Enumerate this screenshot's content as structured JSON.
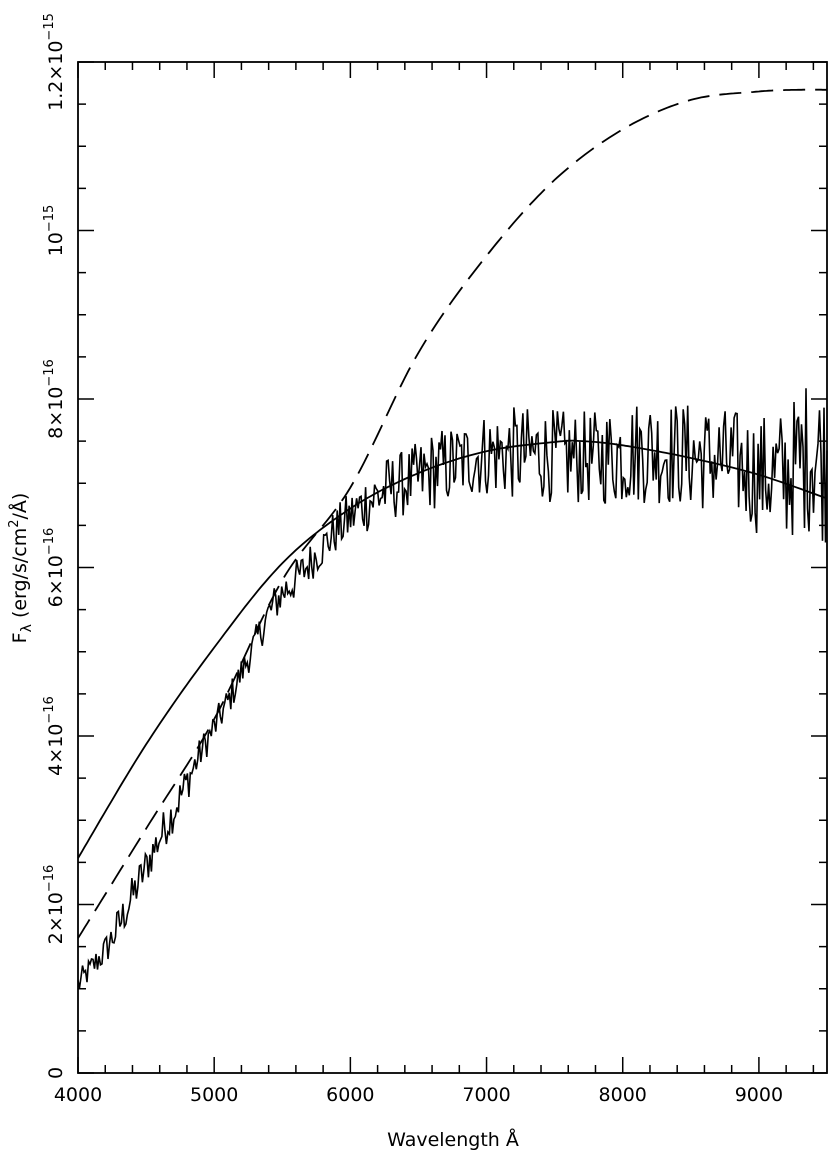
{
  "chart_data": {
    "type": "line",
    "title": "",
    "xlabel": "Wavelength Å",
    "ylabel": {
      "prefix": "F",
      "subscript": "λ",
      "units_start": " (erg/s/cm",
      "superscript": "2",
      "units_end": "/Å)"
    },
    "xlim": [
      4000,
      9500
    ],
    "ylim": [
      0,
      1.2e-15
    ],
    "grid": false,
    "legend": "none",
    "x_tick_labels": [
      {
        "value": 4000,
        "label": "4000"
      },
      {
        "value": 5000,
        "label": "5000"
      },
      {
        "value": 6000,
        "label": "6000"
      },
      {
        "value": 7000,
        "label": "7000"
      },
      {
        "value": 8000,
        "label": "8000"
      },
      {
        "value": 9000,
        "label": "9000"
      }
    ],
    "y_tick_labels": [
      {
        "value": 0,
        "mantissa": "0",
        "exponent": ""
      },
      {
        "value": 2e-16,
        "mantissa": "2×10",
        "exponent": "−16"
      },
      {
        "value": 4e-16,
        "mantissa": "4×10",
        "exponent": "−16"
      },
      {
        "value": 6e-16,
        "mantissa": "6×10",
        "exponent": "−16"
      },
      {
        "value": 8e-16,
        "mantissa": "8×10",
        "exponent": "−16"
      },
      {
        "value": 1e-15,
        "mantissa": "10",
        "exponent": "−15"
      },
      {
        "value": 1.2e-15,
        "mantissa": "1.2×10",
        "exponent": "−15"
      }
    ],
    "series": [
      {
        "style": "solid",
        "x": [
          4000,
          4500,
          5000,
          5500,
          6000,
          6500,
          7000,
          7500,
          7700,
          8000,
          8500,
          9000,
          9500
        ],
        "y": [
          2.55e-16,
          3.9e-16,
          5.05e-16,
          6.05e-16,
          6.7e-16,
          7.12e-16,
          7.38e-16,
          7.49e-16,
          7.5e-16,
          7.45e-16,
          7.3e-16,
          7.1e-16,
          6.82e-16
        ]
      },
      {
        "style": "dashed",
        "x": [
          4000,
          4500,
          5000,
          5500,
          6000,
          6500,
          7000,
          7500,
          8000,
          8500,
          9000,
          9300,
          9500
        ],
        "y": [
          1.6e-16,
          2.9e-16,
          4.2e-16,
          5.85e-16,
          6.95e-16,
          8.55e-16,
          9.7e-16,
          1.06e-15,
          1.12e-15,
          1.155e-15,
          1.165e-15,
          1.167e-15,
          1.167e-15
        ]
      },
      {
        "style": "noisy",
        "x": [
          4000,
          4100,
          4200,
          4300,
          4400,
          4500,
          4600,
          4700,
          4800,
          4900,
          5000,
          5100,
          5200,
          5300,
          5400,
          5500,
          5600,
          5700,
          5800,
          5900,
          6000,
          6100,
          6200,
          6300,
          6400,
          6500,
          6600,
          6700,
          6800,
          6900,
          7000,
          7200,
          7400,
          7600,
          7800,
          8000,
          8200,
          8400,
          8600,
          8800,
          9000,
          9200,
          9400,
          9500
        ],
        "y": [
          1.05e-16,
          1.25e-16,
          1.45e-16,
          1.75e-16,
          2.1e-16,
          2.45e-16,
          2.8e-16,
          3.1e-16,
          3.45e-16,
          3.8e-16,
          4.1e-16,
          4.4e-16,
          4.75e-16,
          5.1e-16,
          5.45e-16,
          5.7e-16,
          5.85e-16,
          6.05e-16,
          6.25e-16,
          6.45e-16,
          6.6e-16,
          6.75e-16,
          6.85e-16,
          6.95e-16,
          7e-16,
          7.05e-16,
          7.15e-16,
          7.2e-16,
          7.25e-16,
          7.3e-16,
          7.35e-16,
          7.35e-16,
          7.35e-16,
          7.3e-16,
          7.3e-16,
          7.35e-16,
          7.4e-16,
          7.35e-16,
          7.3e-16,
          7.25e-16,
          7.1e-16,
          7.1e-16,
          7.4e-16,
          7.2e-16
        ],
        "noise_amplitude": [
          1e-17,
          1e-17,
          1.2e-17,
          1.5e-17,
          1.5e-17,
          1.5e-17,
          1.5e-17,
          1.5e-17,
          1.5e-17,
          1.2e-17,
          1.2e-17,
          1.2e-17,
          1.2e-17,
          1.2e-17,
          1.5e-17,
          1.5e-17,
          1.5e-17,
          1.5e-17,
          1.5e-17,
          1.8e-17,
          2e-17,
          2.2e-17,
          2.5e-17,
          2.5e-17,
          2.5e-17,
          2.8e-17,
          3e-17,
          3e-17,
          3e-17,
          3e-17,
          3.2e-17,
          3.5e-17,
          3.5e-17,
          3.5e-17,
          3.5e-17,
          4e-17,
          4e-17,
          4e-17,
          4e-17,
          4e-17,
          4.5e-17,
          5e-17,
          6e-17,
          6e-17
        ]
      }
    ]
  }
}
